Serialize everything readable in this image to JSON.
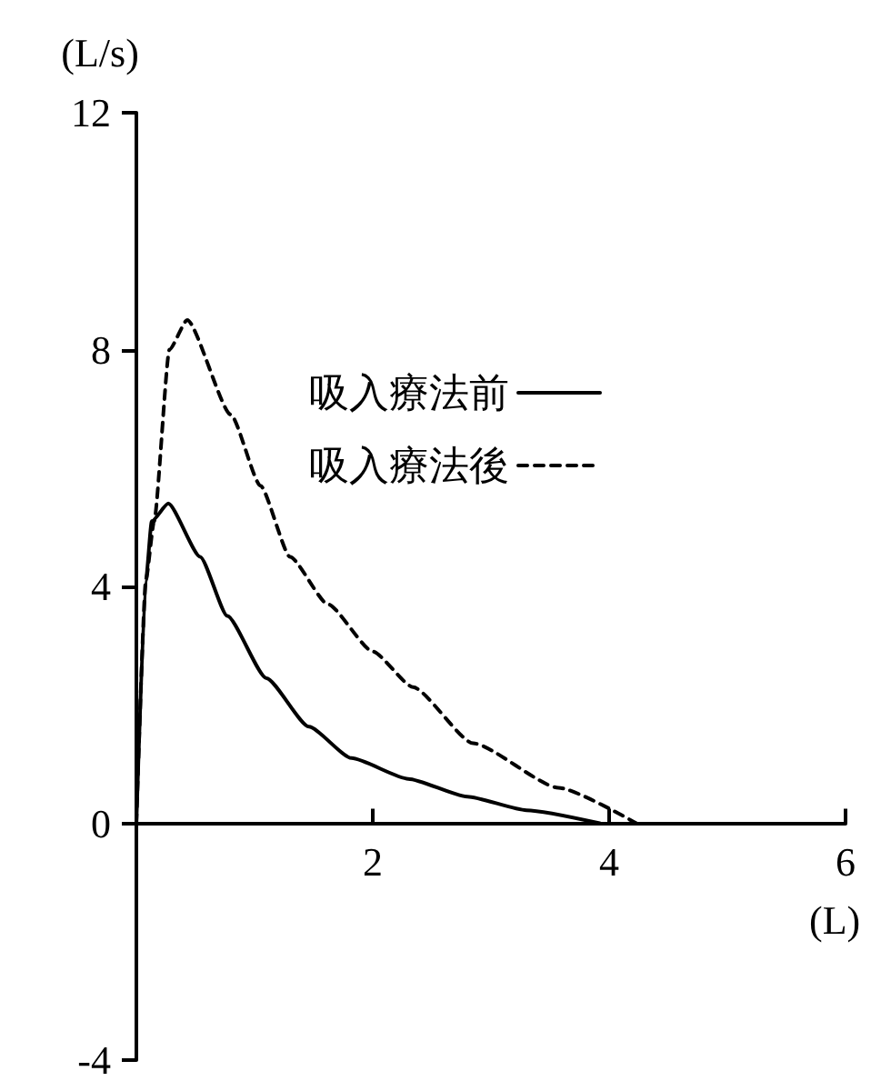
{
  "chart_data": {
    "type": "line",
    "xlabel": "(L)",
    "ylabel": "(L/s)",
    "xlim": [
      0,
      6
    ],
    "xticks": [
      {
        "value": 0,
        "label": null
      },
      2,
      4,
      6
    ],
    "ylim": [
      -4,
      12
    ],
    "yticks": [
      -4,
      0,
      4,
      8,
      12
    ],
    "grid": false,
    "legend": "top",
    "marker": "none",
    "series": [
      {
        "name": "吸入療法前",
        "color": "#000000",
        "line_style": "solid",
        "x": [
          0,
          0.08,
          0.13,
          0.27,
          0.54,
          0.77,
          1.1,
          1.46,
          1.82,
          2.3,
          2.8,
          3.3,
          3.92
        ],
        "values": [
          0,
          4.1,
          5.1,
          5.4,
          4.5,
          3.5,
          2.45,
          1.63,
          1.1,
          0.75,
          0.45,
          0.22,
          0
        ]
      },
      {
        "name": "吸入療法後",
        "color": "#000000",
        "line_style": "dashed",
        "x": [
          0,
          0.08,
          0.15,
          0.28,
          0.43,
          0.8,
          1.05,
          1.3,
          1.62,
          2.0,
          2.34,
          2.85,
          3.57,
          4.23
        ],
        "values": [
          0,
          4.1,
          5.1,
          8.0,
          8.5,
          6.9,
          5.7,
          4.5,
          3.7,
          2.9,
          2.3,
          1.35,
          0.6,
          0
        ]
      }
    ]
  }
}
